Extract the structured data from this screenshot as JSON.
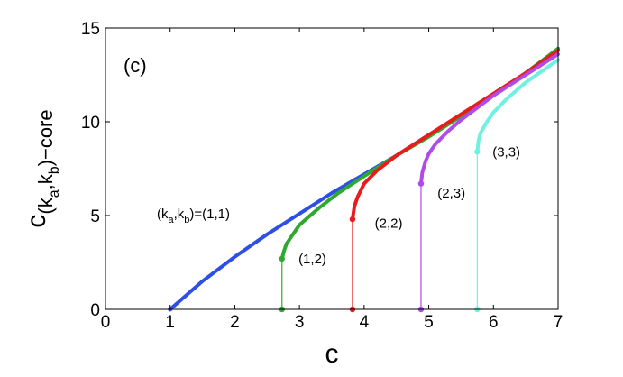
{
  "panel_label": "(c)",
  "chart_data": {
    "type": "line",
    "title": "",
    "xlabel": "c",
    "ylabel": "c(ka,kb)-core",
    "xlim": [
      0,
      7
    ],
    "ylim": [
      0,
      15
    ],
    "x_ticks": [
      "0",
      "1",
      "2",
      "3",
      "4",
      "5",
      "6",
      "7"
    ],
    "y_ticks": [
      "0",
      "5",
      "10",
      "15"
    ],
    "grid": false,
    "series": [
      {
        "name": "(k_a,k_b)=(1,1)",
        "color": "#2e4fe6",
        "x": [
          1.0,
          1.2,
          1.5,
          2.0,
          2.5,
          3.0,
          3.5,
          4.0,
          4.5,
          5.0,
          5.5,
          6.0,
          6.5,
          7.0
        ],
        "y": [
          0.0,
          0.6,
          1.5,
          2.8,
          4.0,
          5.1,
          6.2,
          7.2,
          8.2,
          9.3,
          10.3,
          11.4,
          12.6,
          13.9
        ]
      },
      {
        "name": "(1,2)",
        "color": "#2ea82e",
        "jump_x": 2.73,
        "jump_y": 2.7,
        "x": [
          2.73,
          2.76,
          2.8,
          2.9,
          3.0,
          3.3,
          3.6,
          4.0,
          4.5,
          5.0,
          5.5,
          6.0,
          6.5,
          7.0
        ],
        "y": [
          2.7,
          3.1,
          3.5,
          4.0,
          4.5,
          5.4,
          6.2,
          7.1,
          8.2,
          9.2,
          10.3,
          11.4,
          12.6,
          13.9
        ]
      },
      {
        "name": "(2,2)",
        "color": "#e81c1c",
        "jump_x": 3.82,
        "jump_y": 4.8,
        "x": [
          3.82,
          3.85,
          3.9,
          4.0,
          4.2,
          4.5,
          5.0,
          5.5,
          6.0,
          6.5,
          7.0
        ],
        "y": [
          4.8,
          5.5,
          6.0,
          6.7,
          7.4,
          8.2,
          9.3,
          10.4,
          11.5,
          12.6,
          13.8
        ]
      },
      {
        "name": "(2,3)",
        "color": "#b04ae8",
        "jump_x": 4.88,
        "jump_y": 6.7,
        "x": [
          4.88,
          4.9,
          4.95,
          5.0,
          5.1,
          5.3,
          5.5,
          6.0,
          6.5,
          7.0
        ],
        "y": [
          6.7,
          7.3,
          7.9,
          8.3,
          8.8,
          9.5,
          10.1,
          11.4,
          12.5,
          13.6
        ]
      },
      {
        "name": "(3,3)",
        "color": "#6ff0e0",
        "jump_x": 5.75,
        "jump_y": 8.4,
        "x": [
          5.75,
          5.77,
          5.8,
          5.9,
          6.0,
          6.2,
          6.5,
          7.0
        ],
        "y": [
          8.4,
          9.0,
          9.4,
          10.0,
          10.5,
          11.2,
          12.1,
          13.3
        ]
      }
    ],
    "annotations": [
      {
        "text": "(1,2)",
        "x": 3.2,
        "y": 2.7
      },
      {
        "text": "(2,2)",
        "x": 4.38,
        "y": 4.6
      },
      {
        "text": "(2,3)",
        "x": 5.35,
        "y": 6.2
      },
      {
        "text": "(3,3)",
        "x": 6.2,
        "y": 8.4
      }
    ]
  }
}
